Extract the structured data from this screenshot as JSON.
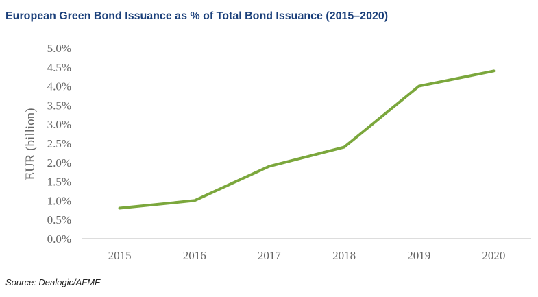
{
  "chart_data": {
    "type": "line",
    "title": "European Green Bond Issuance as % of Total Bond Issuance (2015–2020)",
    "y_label": "EUR (billion)",
    "source": "Source: Dealogic/AFME",
    "categories": [
      "2015",
      "2016",
      "2017",
      "2018",
      "2019",
      "2020"
    ],
    "values": [
      0.8,
      1.0,
      1.9,
      2.4,
      4.0,
      4.4
    ],
    "color": "#7ba73c",
    "ylim": [
      0,
      5
    ],
    "yticks": [
      {
        "value": 0,
        "label": "0.0%"
      },
      {
        "value": 0.5,
        "label": "0.5%"
      },
      {
        "value": 1,
        "label": "1.0%"
      },
      {
        "value": 1.5,
        "label": "1.5%"
      },
      {
        "value": 2,
        "label": "2.0%"
      },
      {
        "value": 2.5,
        "label": "2.5%"
      },
      {
        "value": 3,
        "label": "3.0%"
      },
      {
        "value": 3.5,
        "label": "3.5%"
      },
      {
        "value": 4,
        "label": "4.0%"
      },
      {
        "value": 4.5,
        "label": "4.5%"
      },
      {
        "value": 5,
        "label": "5.0%"
      }
    ],
    "grid": false
  }
}
